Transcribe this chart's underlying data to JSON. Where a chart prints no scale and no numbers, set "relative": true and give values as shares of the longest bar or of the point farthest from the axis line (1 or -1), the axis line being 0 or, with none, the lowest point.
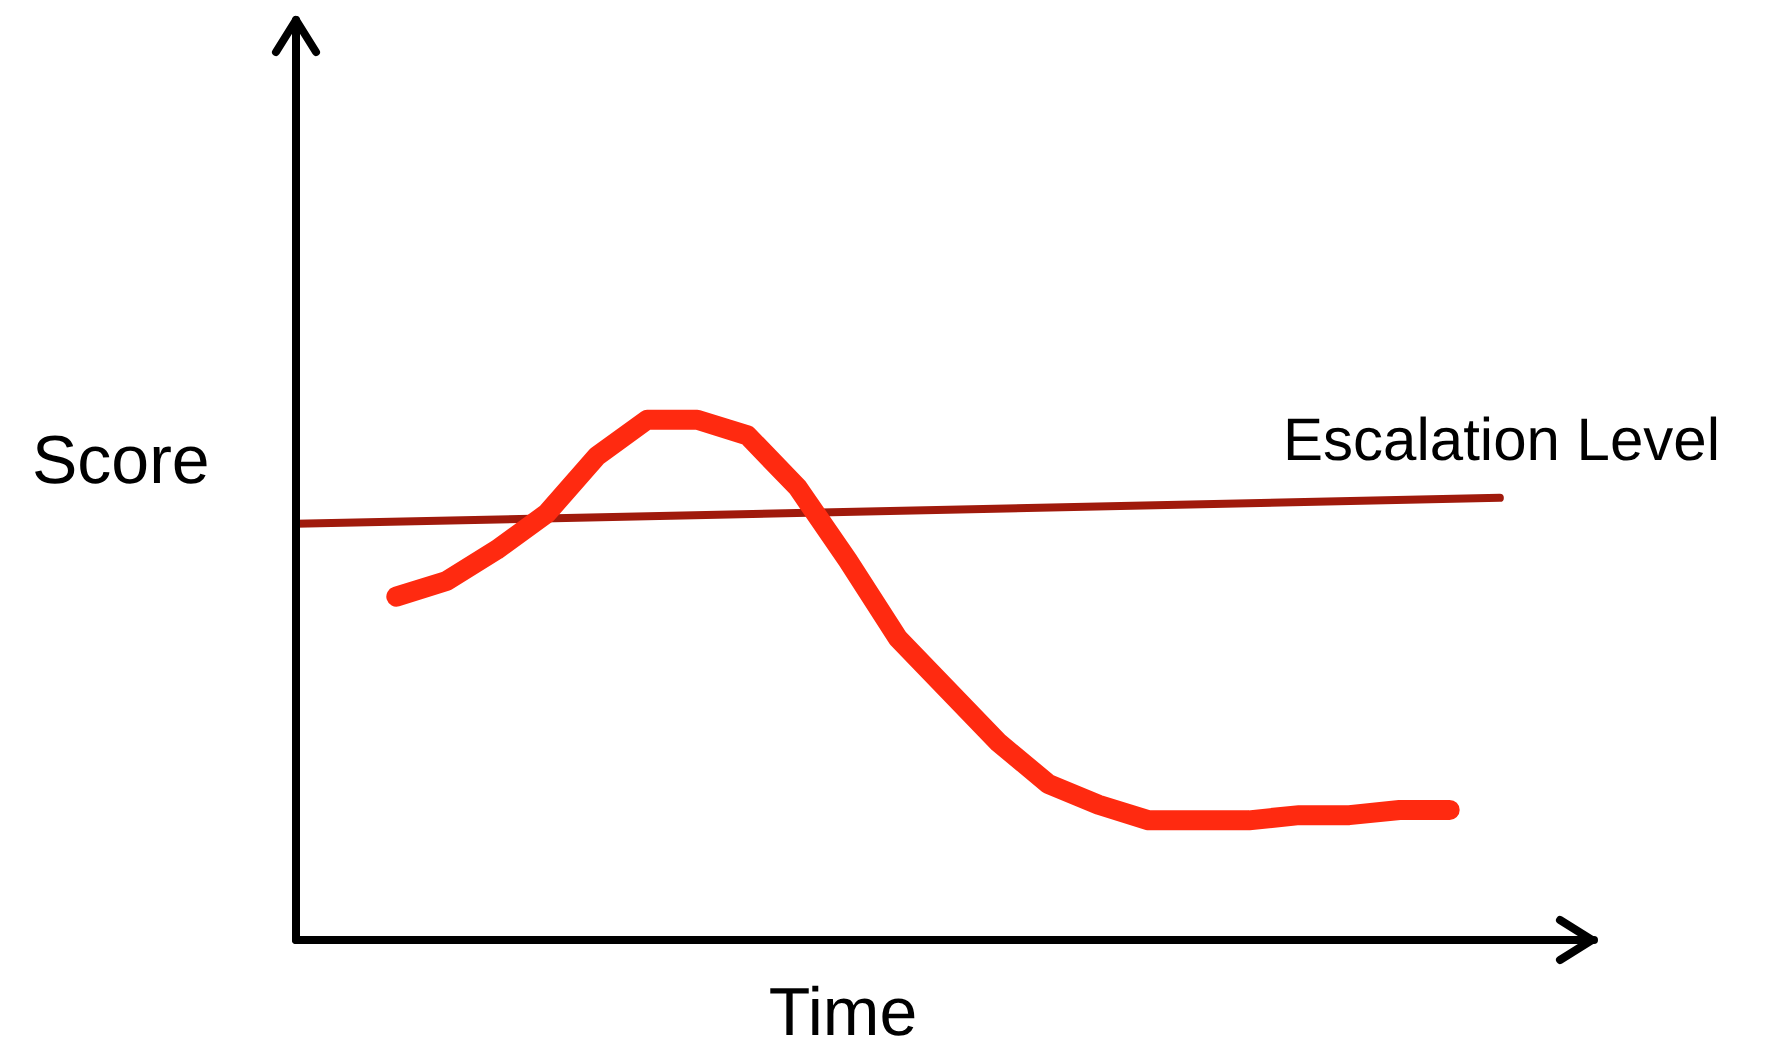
{
  "chart_data": {
    "type": "line",
    "xlabel": "Time",
    "ylabel": "Score",
    "relative": true,
    "marker": "none",
    "categories": [
      null,
      null,
      null,
      null,
      null,
      null,
      null,
      null,
      null,
      null,
      null,
      null,
      null,
      null,
      null,
      null,
      null,
      null,
      null,
      null,
      null,
      null,
      null,
      null,
      null,
      null
    ],
    "series": [
      {
        "color": "#ff2a10",
        "values": [
          null,
          null,
          0.66,
          0.69,
          0.75,
          0.82,
          0.93,
          1.0,
          1.0,
          0.97,
          0.87,
          0.73,
          0.58,
          0.48,
          0.38,
          0.3,
          0.26,
          0.23,
          0.23,
          0.23,
          0.24,
          0.24,
          0.25,
          0.25,
          null,
          null
        ]
      },
      {
        "name": "Escalation Level",
        "color": "#a01a0c",
        "values": [
          0.8,
          null,
          null,
          null,
          null,
          null,
          null,
          null,
          null,
          null,
          null,
          null,
          null,
          null,
          null,
          null,
          null,
          null,
          null,
          null,
          null,
          null,
          null,
          null,
          0.85,
          null
        ]
      }
    ]
  }
}
